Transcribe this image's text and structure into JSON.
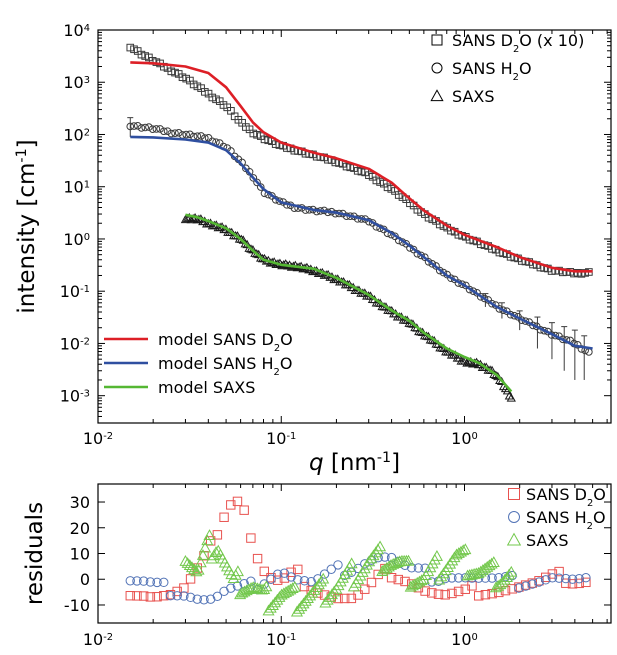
{
  "chart_data": [
    {
      "type": "scatter",
      "xscale": "log",
      "yscale": "log",
      "xlim": [
        0.01,
        6.3
      ],
      "ylim": [
        0.0003,
        10000
      ],
      "xlabel_symbol": "q",
      "xlabel_unit": "[nm",
      "xlabel_exp": "-1",
      "xlabel_close": "]",
      "ylabel": "intensity [cm",
      "ylabel_exp": "-1",
      "ylabel_close": "]",
      "xticks": [
        {
          "v": 0.01,
          "base": "10",
          "exp": "-2"
        },
        {
          "v": 0.1,
          "base": "10",
          "exp": "-1"
        },
        {
          "v": 1,
          "base": "10",
          "exp": "0"
        }
      ],
      "yticks": [
        {
          "v": 0.001,
          "base": "10",
          "exp": "-3"
        },
        {
          "v": 0.01,
          "base": "10",
          "exp": "-2"
        },
        {
          "v": 0.1,
          "base": "10",
          "exp": "-1"
        },
        {
          "v": 1,
          "base": "10",
          "exp": "0"
        },
        {
          "v": 10,
          "base": "10",
          "exp": "1"
        },
        {
          "v": 100,
          "base": "10",
          "exp": "2"
        },
        {
          "v": 1000,
          "base": "10",
          "exp": "3"
        },
        {
          "v": 10000,
          "base": "10",
          "exp": "4"
        }
      ],
      "series": [
        {
          "name": "SANS D2O (x 10)",
          "label_pre": "SANS D",
          "label_sub": "2",
          "label_post": "O (x 10)",
          "marker": "square",
          "color": "#3a3a3a",
          "points": [
            [
              0.015,
              4800
            ],
            [
              0.017,
              3600
            ],
            [
              0.02,
              2600
            ],
            [
              0.025,
              1700
            ],
            [
              0.03,
              1200
            ],
            [
              0.035,
              820
            ],
            [
              0.04,
              600
            ],
            [
              0.05,
              350
            ],
            [
              0.06,
              170
            ],
            [
              0.07,
              110
            ],
            [
              0.08,
              85
            ],
            [
              0.1,
              60
            ],
            [
              0.12,
              50
            ],
            [
              0.15,
              40
            ],
            [
              0.2,
              30
            ],
            [
              0.3,
              17
            ],
            [
              0.4,
              9
            ],
            [
              0.5,
              5
            ],
            [
              0.6,
              3
            ],
            [
              0.8,
              1.6
            ],
            [
              1.0,
              1.1
            ],
            [
              1.5,
              0.6
            ],
            [
              2,
              0.4
            ],
            [
              3,
              0.25
            ],
            [
              4,
              0.22
            ],
            [
              5,
              0.23
            ]
          ]
        },
        {
          "name": "SANS H2O",
          "label_pre": "SANS H",
          "label_sub": "2",
          "label_post": "O",
          "marker": "circle",
          "color": "#3a3a3a",
          "points": [
            [
              0.015,
              150
            ],
            [
              0.017,
              140
            ],
            [
              0.02,
              130
            ],
            [
              0.025,
              110
            ],
            [
              0.03,
              100
            ],
            [
              0.04,
              85
            ],
            [
              0.05,
              58
            ],
            [
              0.06,
              30
            ],
            [
              0.07,
              16
            ],
            [
              0.08,
              8
            ],
            [
              0.1,
              5
            ],
            [
              0.12,
              4
            ],
            [
              0.15,
              3.5
            ],
            [
              0.2,
              3.2
            ],
            [
              0.3,
              2.2
            ],
            [
              0.4,
              1.2
            ],
            [
              0.5,
              0.7
            ],
            [
              0.6,
              0.45
            ],
            [
              0.8,
              0.2
            ],
            [
              1.0,
              0.13
            ],
            [
              1.3,
              0.07
            ],
            [
              1.6,
              0.045
            ],
            [
              2,
              0.03
            ],
            [
              3,
              0.015
            ],
            [
              4,
              0.01
            ],
            [
              5,
              0.006
            ]
          ]
        },
        {
          "name": "SAXS",
          "label_pre": "SAXS",
          "label_sub": "",
          "label_post": "",
          "marker": "triangle",
          "color": "#1a1a1a",
          "points": [
            [
              0.03,
              2.5
            ],
            [
              0.035,
              2.4
            ],
            [
              0.04,
              2.0
            ],
            [
              0.05,
              1.5
            ],
            [
              0.06,
              1.0
            ],
            [
              0.07,
              0.6
            ],
            [
              0.08,
              0.4
            ],
            [
              0.1,
              0.32
            ],
            [
              0.12,
              0.3
            ],
            [
              0.15,
              0.25
            ],
            [
              0.2,
              0.17
            ],
            [
              0.3,
              0.08
            ],
            [
              0.4,
              0.04
            ],
            [
              0.5,
              0.025
            ],
            [
              0.6,
              0.015
            ],
            [
              0.8,
              0.007
            ],
            [
              1.0,
              0.0045
            ],
            [
              1.2,
              0.004
            ],
            [
              1.4,
              0.003
            ],
            [
              1.6,
              0.0018
            ],
            [
              1.8,
              0.0009
            ]
          ]
        }
      ],
      "lines": [
        {
          "name": "model SANS D2O",
          "label_pre": "model SANS D",
          "label_sub": "2",
          "label_post": "O",
          "color": "#dd1f26",
          "points": [
            [
              0.015,
              2400
            ],
            [
              0.02,
              2300
            ],
            [
              0.03,
              2000
            ],
            [
              0.04,
              1500
            ],
            [
              0.05,
              800
            ],
            [
              0.06,
              350
            ],
            [
              0.07,
              170
            ],
            [
              0.08,
              110
            ],
            [
              0.1,
              70
            ],
            [
              0.15,
              45
            ],
            [
              0.2,
              35
            ],
            [
              0.3,
              22
            ],
            [
              0.4,
              12
            ],
            [
              0.5,
              6
            ],
            [
              0.6,
              3.5
            ],
            [
              0.8,
              1.8
            ],
            [
              1.0,
              1.2
            ],
            [
              1.5,
              0.7
            ],
            [
              2,
              0.45
            ],
            [
              3,
              0.28
            ],
            [
              4,
              0.24
            ],
            [
              5,
              0.24
            ]
          ]
        },
        {
          "name": "model SANS H2O",
          "label_pre": "model SANS H",
          "label_sub": "2",
          "label_post": "O",
          "color": "#2f4fa0",
          "points": [
            [
              0.015,
              90
            ],
            [
              0.02,
              88
            ],
            [
              0.03,
              80
            ],
            [
              0.04,
              70
            ],
            [
              0.05,
              50
            ],
            [
              0.06,
              28
            ],
            [
              0.07,
              15
            ],
            [
              0.08,
              9
            ],
            [
              0.1,
              5
            ],
            [
              0.15,
              3.6
            ],
            [
              0.2,
              3.2
            ],
            [
              0.3,
              2.3
            ],
            [
              0.4,
              1.3
            ],
            [
              0.5,
              0.75
            ],
            [
              0.6,
              0.45
            ],
            [
              0.8,
              0.2
            ],
            [
              1.0,
              0.13
            ],
            [
              1.5,
              0.05
            ],
            [
              2,
              0.03
            ],
            [
              3,
              0.015
            ],
            [
              4,
              0.009
            ],
            [
              5,
              0.008
            ]
          ]
        },
        {
          "name": "model SAXS",
          "label_pre": "model SAXS",
          "label_sub": "",
          "label_post": "",
          "color": "#55b733",
          "points": [
            [
              0.03,
              2.9
            ],
            [
              0.035,
              2.6
            ],
            [
              0.04,
              2.2
            ],
            [
              0.05,
              1.6
            ],
            [
              0.06,
              1.0
            ],
            [
              0.07,
              0.6
            ],
            [
              0.08,
              0.4
            ],
            [
              0.1,
              0.32
            ],
            [
              0.15,
              0.27
            ],
            [
              0.2,
              0.18
            ],
            [
              0.3,
              0.085
            ],
            [
              0.4,
              0.043
            ],
            [
              0.5,
              0.027
            ],
            [
              0.6,
              0.016
            ],
            [
              0.8,
              0.008
            ],
            [
              1.0,
              0.0055
            ],
            [
              1.2,
              0.0042
            ],
            [
              1.5,
              0.0025
            ],
            [
              1.8,
              0.0012
            ]
          ]
        }
      ],
      "legend": "top-right / bottom-left",
      "grid": false
    },
    {
      "type": "scatter",
      "xscale": "log",
      "xlim": [
        0.01,
        6.3
      ],
      "ylim": [
        -17,
        37
      ],
      "ylabel": "residuals",
      "yticks": [
        -10,
        0,
        10,
        20,
        30
      ],
      "xticks": [
        {
          "v": 0.01,
          "base": "10",
          "exp": "-2"
        },
        {
          "v": 0.1,
          "base": "10",
          "exp": "-1"
        },
        {
          "v": 1,
          "base": "10",
          "exp": "0"
        }
      ],
      "series": [
        {
          "name": "SANS D2O",
          "label_pre": "SANS D",
          "label_sub": "2",
          "label_post": "O",
          "marker": "square",
          "color": "#e8524f",
          "points": [
            [
              0.015,
              -4
            ],
            [
              0.018,
              -5
            ],
            [
              0.02,
              -6
            ],
            [
              0.025,
              -6
            ],
            [
              0.03,
              -4
            ],
            [
              0.035,
              3
            ],
            [
              0.04,
              10
            ],
            [
              0.045,
              20
            ],
            [
              0.05,
              28
            ],
            [
              0.055,
              32
            ],
            [
              0.06,
              31
            ],
            [
              0.065,
              25
            ],
            [
              0.07,
              12
            ],
            [
              0.08,
              3
            ],
            [
              0.09,
              -1
            ],
            [
              0.1,
              -2
            ],
            [
              0.12,
              2
            ],
            [
              0.15,
              -3
            ],
            [
              0.2,
              -7
            ],
            [
              0.25,
              -8
            ],
            [
              0.3,
              -4
            ],
            [
              0.35,
              1
            ],
            [
              0.4,
              3
            ],
            [
              0.5,
              0
            ],
            [
              0.6,
              -4
            ],
            [
              0.7,
              -6
            ],
            [
              0.8,
              -7
            ],
            [
              1.0,
              -6
            ],
            [
              1.2,
              -4
            ],
            [
              1.5,
              -4
            ],
            [
              2,
              -3
            ],
            [
              2.5,
              -2
            ],
            [
              3,
              0
            ],
            [
              3.5,
              1
            ],
            [
              4,
              0
            ],
            [
              5,
              0
            ]
          ]
        },
        {
          "name": "SANS H2O",
          "label_pre": "SANS H",
          "label_sub": "2",
          "label_post": "O",
          "marker": "circle",
          "color": "#5273b6",
          "points": [
            [
              0.015,
              -1
            ],
            [
              0.018,
              -2
            ],
            [
              0.02,
              -3
            ],
            [
              0.025,
              -4
            ],
            [
              0.03,
              -5
            ],
            [
              0.035,
              -7
            ],
            [
              0.04,
              -8
            ],
            [
              0.045,
              -7
            ],
            [
              0.05,
              -5
            ],
            [
              0.06,
              -4
            ],
            [
              0.07,
              -3
            ],
            [
              0.08,
              0
            ],
            [
              0.09,
              2
            ],
            [
              0.1,
              4
            ],
            [
              0.12,
              0
            ],
            [
              0.15,
              -2
            ],
            [
              0.2,
              3
            ],
            [
              0.25,
              5
            ],
            [
              0.3,
              8
            ],
            [
              0.35,
              9
            ],
            [
              0.4,
              8
            ],
            [
              0.5,
              3
            ],
            [
              0.6,
              2
            ],
            [
              0.7,
              1
            ],
            [
              0.8,
              2
            ],
            [
              1.0,
              1
            ],
            [
              1.2,
              0
            ],
            [
              1.5,
              -1
            ],
            [
              2,
              -1
            ],
            [
              2.5,
              0
            ],
            [
              3,
              1
            ],
            [
              3.5,
              0
            ],
            [
              4,
              -1
            ],
            [
              5,
              -1
            ]
          ]
        },
        {
          "name": "SAXS",
          "label_pre": "SAXS",
          "label_sub": "",
          "label_post": "",
          "marker": "triangle",
          "color": "#73c84c",
          "points": [
            [
              0.03,
              11
            ],
            [
              0.035,
              2
            ],
            [
              0.04,
              12
            ],
            [
              0.045,
              14
            ],
            [
              0.05,
              5
            ],
            [
              0.055,
              -3
            ],
            [
              0.06,
              -1
            ],
            [
              0.07,
              -3
            ],
            [
              0.08,
              -8
            ],
            [
              0.1,
              -6
            ],
            [
              0.12,
              -8
            ],
            [
              0.15,
              -6
            ],
            [
              0.18,
              -4
            ],
            [
              0.2,
              -3
            ],
            [
              0.25,
              2
            ],
            [
              0.3,
              6
            ],
            [
              0.35,
              8
            ],
            [
              0.4,
              7
            ],
            [
              0.45,
              5
            ],
            [
              0.5,
              2
            ],
            [
              0.6,
              0
            ],
            [
              0.7,
              4
            ],
            [
              0.8,
              6
            ],
            [
              0.9,
              8
            ],
            [
              1.0,
              7
            ],
            [
              1.2,
              3
            ],
            [
              1.4,
              2
            ],
            [
              1.6,
              1
            ],
            [
              1.8,
              2
            ]
          ]
        }
      ],
      "legend": "top-right",
      "grid": false
    }
  ]
}
